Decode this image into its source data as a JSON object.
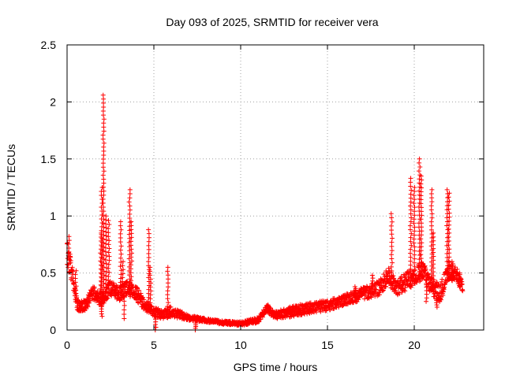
{
  "chart_data": {
    "type": "scatter",
    "title": "Day 093 of 2025, SRMTID for receiver vera",
    "xlabel": "GPS time / hours",
    "ylabel": "SRMTID / TECUs",
    "xlim": [
      0,
      24
    ],
    "ylim": [
      0,
      2.5
    ],
    "grid": true,
    "legend": "none",
    "x_ticks": [
      0,
      5,
      10,
      15,
      20
    ],
    "x_tick_labels": [
      "0",
      "5",
      "10",
      "15",
      "20"
    ],
    "y_ticks": [
      0,
      0.5,
      1,
      1.5,
      2,
      2.5
    ],
    "y_tick_labels": [
      "0",
      "0.5",
      "1",
      "1.5",
      "2",
      "2.5"
    ],
    "series": [
      {
        "name": "SRMTID",
        "marker": "plus",
        "color": "#ff0000",
        "baseline_profile": {
          "x": [
            0.0,
            0.3,
            0.6,
            1.0,
            1.5,
            2.0,
            2.5,
            3.0,
            3.5,
            4.0,
            4.5,
            5.0,
            5.5,
            6.0,
            7.0,
            8.0,
            9.0,
            10.0,
            11.0,
            11.5,
            12.0,
            13.0,
            14.0,
            15.0,
            16.0,
            17.0,
            18.0,
            18.5,
            19.0,
            19.5,
            20.0,
            20.5,
            21.0,
            21.5,
            22.0,
            22.5,
            22.8
          ],
          "y": [
            0.65,
            0.45,
            0.2,
            0.2,
            0.3,
            0.25,
            0.35,
            0.3,
            0.35,
            0.3,
            0.2,
            0.15,
            0.12,
            0.15,
            0.1,
            0.08,
            0.06,
            0.05,
            0.08,
            0.18,
            0.12,
            0.15,
            0.18,
            0.2,
            0.25,
            0.3,
            0.35,
            0.45,
            0.35,
            0.4,
            0.45,
            0.5,
            0.35,
            0.3,
            0.5,
            0.45,
            0.35
          ],
          "noise": [
            0.15,
            0.1,
            0.06,
            0.06,
            0.08,
            0.08,
            0.08,
            0.08,
            0.08,
            0.08,
            0.06,
            0.05,
            0.05,
            0.06,
            0.03,
            0.02,
            0.02,
            0.02,
            0.03,
            0.04,
            0.04,
            0.06,
            0.06,
            0.06,
            0.06,
            0.07,
            0.08,
            0.1,
            0.08,
            0.1,
            0.1,
            0.1,
            0.1,
            0.1,
            0.1,
            0.08,
            0.06
          ]
        },
        "spikes": [
          {
            "x": 0.1,
            "peak": 0.82
          },
          {
            "x": 0.5,
            "peak": 0.52
          },
          {
            "x": 1.95,
            "peak": 0.85
          },
          {
            "x": 2.0,
            "peak": 1.25
          },
          {
            "x": 2.1,
            "peak": 2.06
          },
          {
            "x": 2.25,
            "peak": 1.0
          },
          {
            "x": 2.4,
            "peak": 0.96
          },
          {
            "x": 3.1,
            "peak": 0.95
          },
          {
            "x": 3.2,
            "peak": 0.6
          },
          {
            "x": 3.6,
            "peak": 1.23
          },
          {
            "x": 3.7,
            "peak": 0.95
          },
          {
            "x": 4.7,
            "peak": 0.88
          },
          {
            "x": 4.8,
            "peak": 0.55
          },
          {
            "x": 5.8,
            "peak": 0.55
          },
          {
            "x": 11.6,
            "peak": 0.22
          },
          {
            "x": 16.6,
            "peak": 0.38
          },
          {
            "x": 17.6,
            "peak": 0.48
          },
          {
            "x": 18.7,
            "peak": 1.02
          },
          {
            "x": 19.8,
            "peak": 1.33
          },
          {
            "x": 20.0,
            "peak": 1.25
          },
          {
            "x": 20.3,
            "peak": 1.5
          },
          {
            "x": 20.4,
            "peak": 1.35
          },
          {
            "x": 21.0,
            "peak": 1.23
          },
          {
            "x": 21.1,
            "peak": 0.85
          },
          {
            "x": 21.9,
            "peak": 1.23
          },
          {
            "x": 22.0,
            "peak": 1.2
          },
          {
            "x": 22.2,
            "peak": 0.6
          },
          {
            "x": 22.6,
            "peak": 0.5
          }
        ],
        "dips": [
          {
            "x": 2.0,
            "low": 0.12
          },
          {
            "x": 3.3,
            "low": 0.1
          },
          {
            "x": 5.1,
            "low": 0.0
          },
          {
            "x": 7.4,
            "low": 0.0
          },
          {
            "x": 20.7,
            "low": 0.25
          },
          {
            "x": 21.3,
            "low": 0.2
          }
        ]
      }
    ]
  }
}
